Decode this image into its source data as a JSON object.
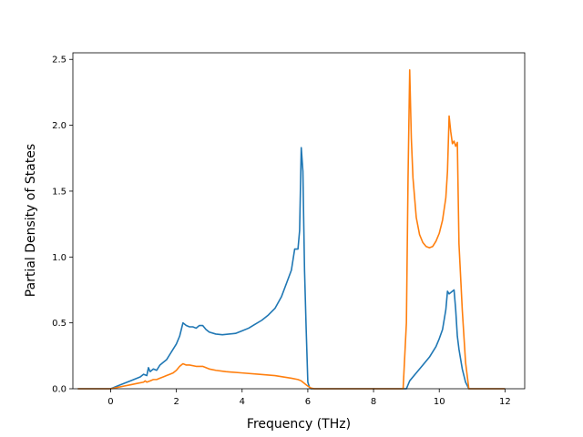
{
  "chart_data": {
    "type": "line",
    "title": "",
    "xlabel": "Frequency (THz)",
    "ylabel": "Partial Density of States",
    "xlim": [
      -1.15,
      12.6
    ],
    "ylim": [
      0,
      2.55
    ],
    "xticks": [
      0,
      2,
      4,
      6,
      8,
      10,
      12
    ],
    "yticks": [
      0.0,
      0.5,
      1.0,
      1.5,
      2.0,
      2.5
    ],
    "xtick_labels": [
      "0",
      "2",
      "4",
      "6",
      "8",
      "10",
      "12"
    ],
    "ytick_labels": [
      "0.0",
      "0.5",
      "1.0",
      "1.5",
      "2.0",
      "2.5"
    ],
    "grid": false,
    "legend": "none",
    "series": [
      {
        "color": "#1f77b4",
        "x": [
          -1.0,
          0.0,
          0.3,
          0.6,
          0.9,
          1.0,
          1.1,
          1.15,
          1.2,
          1.3,
          1.4,
          1.5,
          1.6,
          1.7,
          1.8,
          1.9,
          2.0,
          2.1,
          2.2,
          2.3,
          2.4,
          2.5,
          2.6,
          2.7,
          2.8,
          2.9,
          3.0,
          3.2,
          3.4,
          3.6,
          3.8,
          4.0,
          4.2,
          4.4,
          4.6,
          4.8,
          5.0,
          5.2,
          5.35,
          5.5,
          5.6,
          5.7,
          5.75,
          5.8,
          5.85,
          5.9,
          5.95,
          6.0,
          6.05,
          6.1,
          6.2,
          7.0,
          8.0,
          8.9,
          9.0,
          9.1,
          9.3,
          9.5,
          9.7,
          9.9,
          10.0,
          10.1,
          10.2,
          10.25,
          10.3,
          10.35,
          10.4,
          10.45,
          10.5,
          10.55,
          10.6,
          10.7,
          10.8,
          10.9,
          11.0,
          12.0
        ],
        "y": [
          0.0,
          0.0,
          0.03,
          0.06,
          0.09,
          0.11,
          0.1,
          0.16,
          0.13,
          0.15,
          0.14,
          0.18,
          0.2,
          0.22,
          0.26,
          0.3,
          0.34,
          0.4,
          0.5,
          0.48,
          0.47,
          0.47,
          0.46,
          0.48,
          0.48,
          0.45,
          0.43,
          0.415,
          0.41,
          0.415,
          0.42,
          0.44,
          0.46,
          0.49,
          0.52,
          0.56,
          0.61,
          0.7,
          0.8,
          0.9,
          1.06,
          1.06,
          1.2,
          1.83,
          1.65,
          0.9,
          0.45,
          0.05,
          0.01,
          0.0,
          0.0,
          0.0,
          0.0,
          0.0,
          0.0,
          0.06,
          0.12,
          0.18,
          0.24,
          0.32,
          0.38,
          0.45,
          0.6,
          0.74,
          0.72,
          0.73,
          0.74,
          0.75,
          0.6,
          0.4,
          0.3,
          0.15,
          0.05,
          0.0,
          0.0,
          0.0
        ]
      },
      {
        "color": "#ff7f0e",
        "x": [
          -1.0,
          0.0,
          0.2,
          0.4,
          0.6,
          0.8,
          1.0,
          1.05,
          1.1,
          1.2,
          1.3,
          1.4,
          1.5,
          1.6,
          1.7,
          1.8,
          1.9,
          2.0,
          2.1,
          2.2,
          2.3,
          2.4,
          2.6,
          2.8,
          3.0,
          3.2,
          3.5,
          4.0,
          4.5,
          5.0,
          5.5,
          5.7,
          5.8,
          5.9,
          6.0,
          6.1,
          6.2,
          7.0,
          8.0,
          8.9,
          9.0,
          9.05,
          9.1,
          9.15,
          9.2,
          9.3,
          9.4,
          9.5,
          9.6,
          9.7,
          9.8,
          9.9,
          10.0,
          10.1,
          10.2,
          10.25,
          10.3,
          10.35,
          10.4,
          10.45,
          10.5,
          10.55,
          10.6,
          10.7,
          10.8,
          10.9,
          11.0,
          12.0
        ],
        "y": [
          0.0,
          0.0,
          0.01,
          0.02,
          0.03,
          0.04,
          0.05,
          0.06,
          0.05,
          0.06,
          0.07,
          0.07,
          0.08,
          0.09,
          0.1,
          0.11,
          0.12,
          0.14,
          0.17,
          0.19,
          0.18,
          0.18,
          0.17,
          0.17,
          0.15,
          0.14,
          0.13,
          0.12,
          0.11,
          0.1,
          0.08,
          0.07,
          0.06,
          0.04,
          0.02,
          0.005,
          0.0,
          0.0,
          0.0,
          0.0,
          0.5,
          1.6,
          2.42,
          1.9,
          1.6,
          1.3,
          1.17,
          1.11,
          1.08,
          1.07,
          1.08,
          1.12,
          1.18,
          1.28,
          1.45,
          1.65,
          2.07,
          1.95,
          1.86,
          1.88,
          1.84,
          1.87,
          1.1,
          0.6,
          0.2,
          0.0,
          0.0,
          0.0
        ]
      }
    ]
  }
}
